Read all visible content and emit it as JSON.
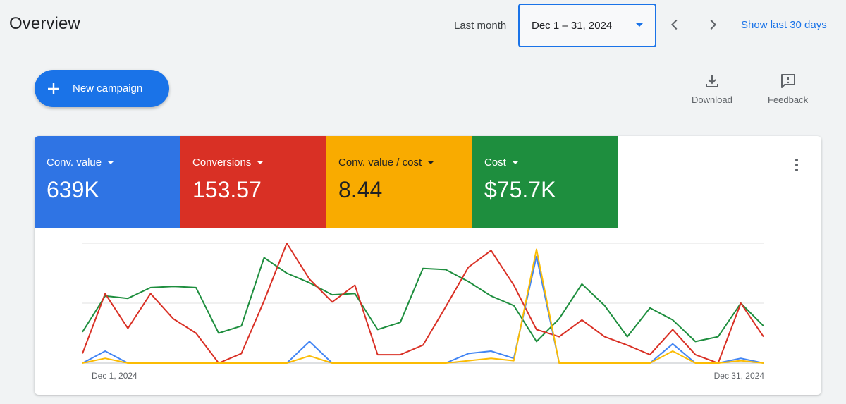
{
  "header": {
    "title": "Overview",
    "date_range_label": "Last month",
    "date_range_value": "Dec 1 – 31, 2024",
    "show_last": "Show last 30 days"
  },
  "actions": {
    "new_campaign": "New campaign",
    "download": "Download",
    "feedback": "Feedback"
  },
  "metrics": [
    {
      "label": "Conv. value",
      "value": "639K",
      "color": "#2f74e4"
    },
    {
      "label": "Conversions",
      "value": "153.57",
      "color": "#d93025"
    },
    {
      "label": "Conv. value / cost",
      "value": "8.44",
      "color": "#f9ab00"
    },
    {
      "label": "Cost",
      "value": "$75.7K",
      "color": "#1e8e3e"
    }
  ],
  "chart_data": {
    "type": "line",
    "x_start_label": "Dec 1, 2024",
    "x_end_label": "Dec 31, 2024",
    "x": [
      1,
      2,
      3,
      4,
      5,
      6,
      7,
      8,
      9,
      10,
      11,
      12,
      13,
      14,
      15,
      16,
      17,
      18,
      19,
      20,
      21,
      22,
      23,
      24,
      25,
      26,
      27,
      28,
      29,
      30,
      31
    ],
    "ylim": [
      0,
      100
    ],
    "grid": true,
    "series": [
      {
        "color": "#1e8e3e",
        "values": [
          26,
          56,
          54,
          63,
          64,
          63,
          25,
          31,
          88,
          75,
          67,
          57,
          58,
          28,
          34,
          79,
          78,
          68,
          56,
          48,
          18,
          37,
          66,
          48,
          22,
          46,
          36,
          18,
          22,
          50,
          31
        ]
      },
      {
        "color": "#d93025",
        "values": [
          8,
          58,
          29,
          58,
          37,
          25,
          0,
          8,
          52,
          100,
          70,
          51,
          65,
          7,
          7,
          15,
          47,
          80,
          94,
          65,
          28,
          22,
          36,
          22,
          15,
          7,
          28,
          7,
          0,
          50,
          22
        ]
      },
      {
        "color": "#4285f4",
        "values": [
          0,
          10,
          0,
          0,
          0,
          0,
          0,
          0,
          0,
          0,
          18,
          0,
          0,
          0,
          0,
          0,
          0,
          8,
          10,
          4,
          89,
          0,
          0,
          0,
          0,
          0,
          16,
          0,
          0,
          4,
          0
        ]
      },
      {
        "color": "#fbbc04",
        "values": [
          0,
          4,
          0,
          0,
          0,
          0,
          0,
          0,
          0,
          0,
          6,
          0,
          0,
          0,
          0,
          0,
          0,
          2,
          4,
          2,
          95,
          0,
          0,
          0,
          0,
          0,
          10,
          0,
          0,
          2,
          0
        ]
      }
    ]
  }
}
